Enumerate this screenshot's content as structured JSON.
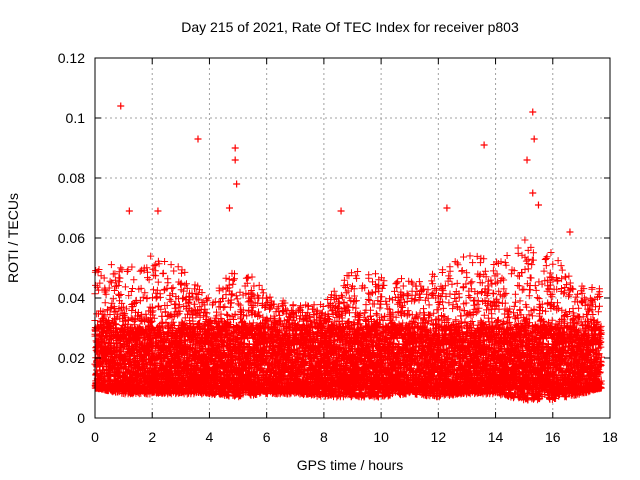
{
  "chart_data": {
    "type": "scatter",
    "title": "Day 215 of 2021, Rate Of TEC Index for receiver p803",
    "xlabel": "GPS time / hours",
    "ylabel": "ROTI / TECUs",
    "xlim": [
      0,
      18
    ],
    "ylim": [
      0,
      0.12
    ],
    "xticks": [
      0,
      2,
      4,
      6,
      8,
      10,
      12,
      14,
      16,
      18
    ],
    "xtick_labels": [
      "0",
      "2",
      "4",
      "6",
      "8",
      "10",
      "12",
      "14",
      "16",
      "18"
    ],
    "yticks": [
      0,
      0.02,
      0.04,
      0.06,
      0.08,
      0.1,
      0.12
    ],
    "ytick_labels": [
      "0",
      "0.02",
      "0.04",
      "0.06",
      "0.08",
      "0.1",
      "0.12"
    ],
    "grid": true,
    "marker": "+",
    "color": "#ff0000",
    "series": [
      {
        "name": "ROTI",
        "notable_points": [
          {
            "x": 0.9,
            "y": 0.104
          },
          {
            "x": 1.2,
            "y": 0.069
          },
          {
            "x": 2.2,
            "y": 0.069
          },
          {
            "x": 3.6,
            "y": 0.093
          },
          {
            "x": 4.9,
            "y": 0.09
          },
          {
            "x": 4.9,
            "y": 0.086
          },
          {
            "x": 4.95,
            "y": 0.078
          },
          {
            "x": 4.7,
            "y": 0.07
          },
          {
            "x": 8.6,
            "y": 0.069
          },
          {
            "x": 12.3,
            "y": 0.07
          },
          {
            "x": 13.6,
            "y": 0.091
          },
          {
            "x": 15.1,
            "y": 0.086
          },
          {
            "x": 15.3,
            "y": 0.102
          },
          {
            "x": 15.35,
            "y": 0.093
          },
          {
            "x": 15.3,
            "y": 0.075
          },
          {
            "x": 15.5,
            "y": 0.071
          },
          {
            "x": 16.6,
            "y": 0.062
          }
        ],
        "envelope": [
          {
            "x": 0.0,
            "lo": 0.01,
            "hi": 0.05
          },
          {
            "x": 1.0,
            "lo": 0.008,
            "hi": 0.052
          },
          {
            "x": 2.0,
            "lo": 0.008,
            "hi": 0.055
          },
          {
            "x": 3.0,
            "lo": 0.008,
            "hi": 0.05
          },
          {
            "x": 4.0,
            "lo": 0.008,
            "hi": 0.04
          },
          {
            "x": 5.0,
            "lo": 0.007,
            "hi": 0.052
          },
          {
            "x": 6.0,
            "lo": 0.008,
            "hi": 0.042
          },
          {
            "x": 7.0,
            "lo": 0.008,
            "hi": 0.038
          },
          {
            "x": 8.0,
            "lo": 0.007,
            "hi": 0.038
          },
          {
            "x": 9.0,
            "lo": 0.007,
            "hi": 0.05
          },
          {
            "x": 10.0,
            "lo": 0.007,
            "hi": 0.048
          },
          {
            "x": 11.0,
            "lo": 0.008,
            "hi": 0.046
          },
          {
            "x": 12.0,
            "lo": 0.007,
            "hi": 0.05
          },
          {
            "x": 13.0,
            "lo": 0.008,
            "hi": 0.055
          },
          {
            "x": 14.0,
            "lo": 0.008,
            "hi": 0.052
          },
          {
            "x": 15.0,
            "lo": 0.006,
            "hi": 0.06
          },
          {
            "x": 16.0,
            "lo": 0.006,
            "hi": 0.055
          },
          {
            "x": 17.0,
            "lo": 0.008,
            "hi": 0.045
          },
          {
            "x": 17.7,
            "lo": 0.01,
            "hi": 0.044
          }
        ],
        "x_end": 17.7,
        "sample_interval_hours": 0.008,
        "typical_range": [
          0.01,
          0.03
        ]
      }
    ]
  }
}
